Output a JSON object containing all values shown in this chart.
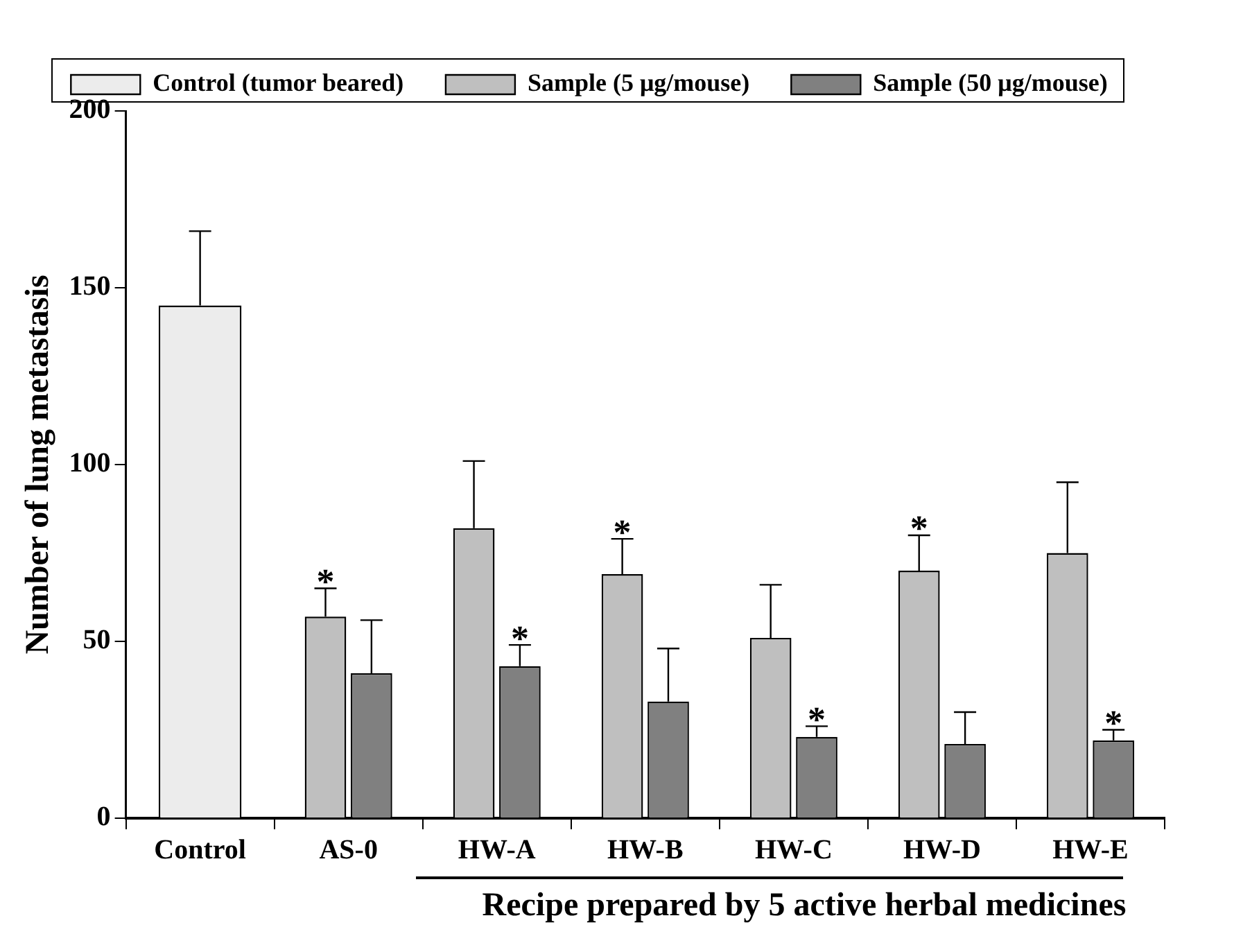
{
  "chart_data": {
    "type": "bar",
    "ylabel": "Number of lung metastasis",
    "xlabel": "Recipe prepared by 5 active herbal medicines",
    "categories": [
      "Control",
      "AS-0",
      "HW-A",
      "HW-B",
      "HW-C",
      "HW-D",
      "HW-E"
    ],
    "series": [
      {
        "name": "Control (tumor beared)",
        "color": "#ececec",
        "values": [
          145,
          null,
          null,
          null,
          null,
          null,
          null
        ],
        "errors": [
          [
            145,
            166
          ],
          null,
          null,
          null,
          null,
          null,
          null
        ]
      },
      {
        "name": "Sample (5 μg/mouse)",
        "color": "#bfbfbf",
        "values": [
          null,
          57,
          82,
          69,
          51,
          70,
          75
        ],
        "errors": [
          null,
          [
            57,
            65
          ],
          [
            82,
            101
          ],
          [
            69,
            79
          ],
          [
            51,
            66
          ],
          [
            70,
            80
          ],
          [
            75,
            95
          ]
        ]
      },
      {
        "name": "Sample (50 μg/mouse)",
        "color": "#808080",
        "values": [
          null,
          41,
          43,
          33,
          23,
          21,
          22
        ],
        "errors": [
          null,
          [
            41,
            56
          ],
          [
            43,
            49
          ],
          [
            33,
            48
          ],
          [
            23,
            26
          ],
          [
            21,
            30
          ],
          [
            22,
            25
          ]
        ]
      }
    ],
    "ylim": [
      0,
      200
    ],
    "yticks": [
      0,
      50,
      100,
      150,
      200
    ],
    "grid": false,
    "legend": "top",
    "annotations": [
      {
        "text": "*",
        "x": "AS-0",
        "y": 57
      },
      {
        "text": "*",
        "x": "HW-A",
        "y": 43
      },
      {
        "text": "*",
        "x": "HW-B",
        "y": 69
      },
      {
        "text": "*",
        "x": "HW-C",
        "y": 23
      },
      {
        "text": "*",
        "x": "HW-D",
        "y": 70
      },
      {
        "text": "*",
        "x": "HW-E",
        "y": 22
      }
    ]
  }
}
